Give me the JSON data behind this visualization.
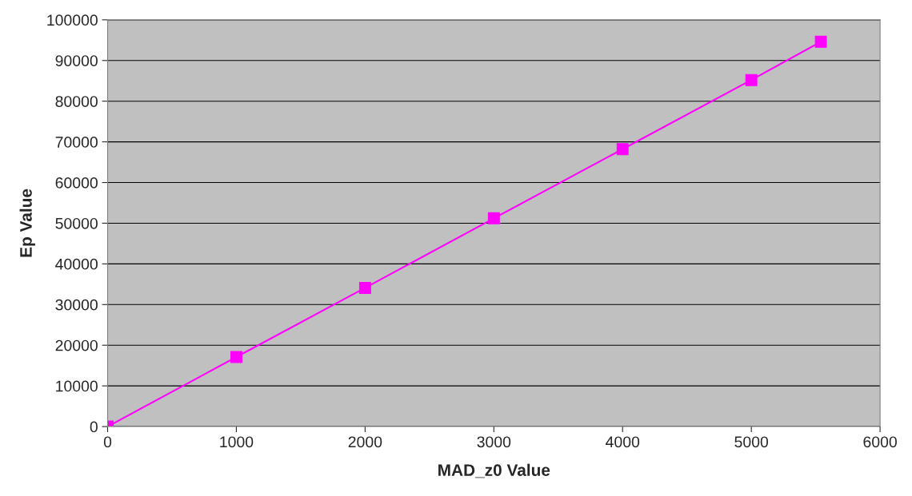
{
  "chart_data": {
    "type": "line",
    "xlabel": "MAD_z0 Value",
    "ylabel": "Ep Value",
    "x": [
      0,
      1000,
      2000,
      3000,
      4000,
      5000,
      5540
    ],
    "series": [
      {
        "color": "#ff00ff",
        "values": [
          0,
          17100,
          34100,
          51200,
          68200,
          85200,
          94600
        ]
      }
    ],
    "xlim": [
      0,
      6000
    ],
    "xticks": [
      0,
      1000,
      2000,
      3000,
      4000,
      5000,
      6000
    ],
    "ylim": [
      0,
      100000
    ],
    "yticks": [
      0,
      10000,
      20000,
      30000,
      40000,
      50000,
      60000,
      70000,
      80000,
      90000,
      100000
    ],
    "grid": "y",
    "marker": "square",
    "line_style": "solid"
  }
}
